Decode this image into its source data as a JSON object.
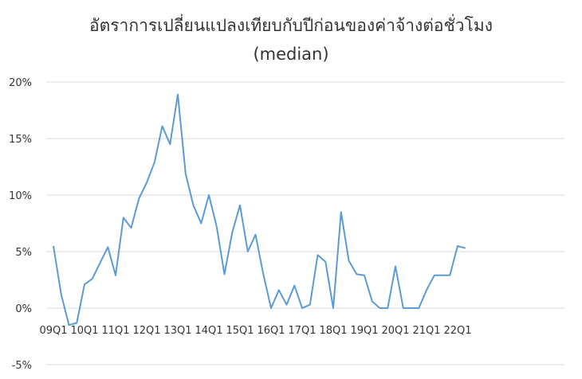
{
  "chart_data": {
    "type": "line",
    "title": "อัตราการเปลี่ยนแปลงเทียบกับปีก่อนของค่าจ้างต่อชั่วโมง",
    "subtitle": "(median)",
    "xlabel": "",
    "ylabel": "",
    "ylim": [
      -5,
      20
    ],
    "yticks": [
      "-5%",
      "0%",
      "5%",
      "10%",
      "15%",
      "20%"
    ],
    "ytick_values": [
      -5,
      0,
      5,
      10,
      15,
      20
    ],
    "xticks": [
      "09Q1",
      "10Q1",
      "11Q1",
      "12Q1",
      "13Q1",
      "14Q1",
      "15Q1",
      "16Q1",
      "17Q1",
      "18Q1",
      "19Q1",
      "20Q1",
      "21Q1",
      "22Q1"
    ],
    "grid": true,
    "legend": "none",
    "line_color": "#5b9bd5",
    "grid_color": "#d9d9d9",
    "series": [
      {
        "x": [
          "09Q1",
          "09Q2",
          "09Q3",
          "09Q4",
          "10Q1",
          "10Q2",
          "10Q3",
          "10Q4",
          "11Q1",
          "11Q2",
          "11Q3",
          "11Q4",
          "12Q1",
          "12Q2",
          "12Q3",
          "12Q4",
          "13Q1",
          "13Q2",
          "13Q3",
          "13Q4",
          "14Q1",
          "14Q2",
          "14Q3",
          "14Q4",
          "15Q1",
          "15Q2",
          "15Q3",
          "15Q4",
          "16Q1",
          "16Q2",
          "16Q3",
          "16Q4",
          "17Q1",
          "17Q2",
          "17Q3",
          "17Q4",
          "18Q1",
          "18Q2",
          "18Q3",
          "18Q4",
          "19Q1",
          "19Q2",
          "19Q3",
          "19Q4",
          "20Q1",
          "20Q2",
          "20Q3",
          "20Q4",
          "21Q1",
          "21Q2",
          "21Q3",
          "21Q4",
          "22Q1",
          "22Q2"
        ],
        "values": [
          5.5,
          1.2,
          -1.5,
          -1.3,
          2.1,
          2.6,
          4.0,
          5.4,
          2.9,
          8.0,
          7.1,
          9.7,
          11.1,
          12.9,
          16.1,
          14.5,
          18.9,
          11.9,
          9.1,
          7.5,
          10.0,
          7.2,
          3.0,
          6.7,
          9.1,
          5.0,
          6.5,
          3.0,
          0.0,
          1.6,
          0.3,
          2.0,
          0.0,
          0.3,
          4.7,
          4.1,
          0.0,
          8.5,
          4.2,
          3.0,
          2.9,
          0.6,
          0.0,
          0.0,
          3.7,
          0.0,
          0.0,
          0.0,
          1.6,
          2.9,
          2.9,
          2.9,
          5.5,
          5.3
        ]
      }
    ]
  }
}
